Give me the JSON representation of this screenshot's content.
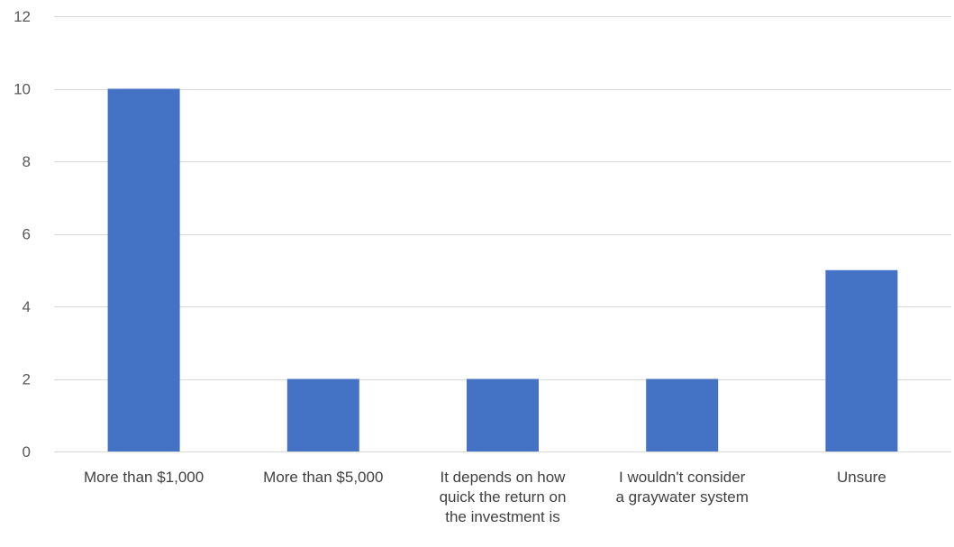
{
  "chart_data": {
    "type": "bar",
    "categories": [
      [
        "More than $1,000"
      ],
      [
        "More than $5,000"
      ],
      [
        "It depends on how",
        "quick the return on",
        "the investment is"
      ],
      [
        "I wouldn't consider",
        "a graywater system"
      ],
      [
        "Unsure"
      ]
    ],
    "values": [
      10,
      2,
      2,
      2,
      5
    ],
    "ylim": [
      0,
      12
    ],
    "yticks": [
      0,
      2,
      4,
      6,
      8,
      10,
      12
    ],
    "title": "",
    "xlabel": "",
    "ylabel": "",
    "grid": true,
    "legend": "none",
    "bar_color": "#4472c4"
  }
}
